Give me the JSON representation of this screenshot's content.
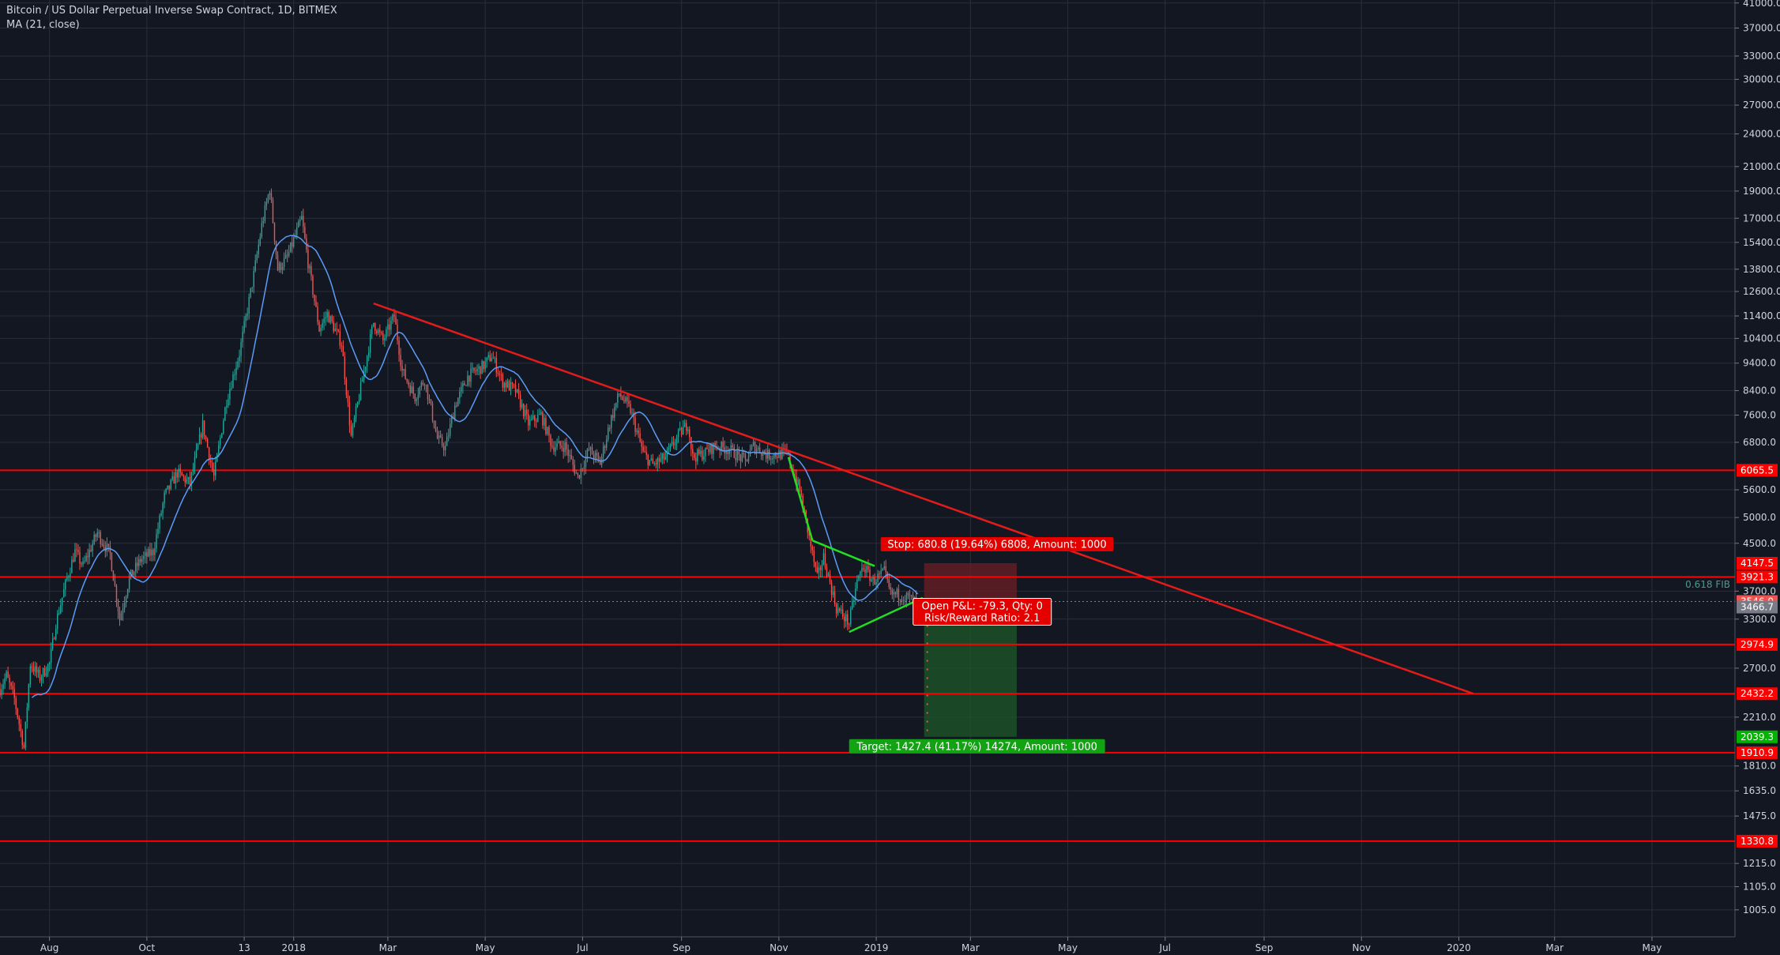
{
  "header": {
    "title": "Bitcoin / US Dollar Perpetual Inverse Swap Contract, 1D, BITMEX",
    "indicator": "MA (21, close)"
  },
  "colors": {
    "background": "#131722",
    "grid": "#2a2e39",
    "axis_text": "#d1d4dc",
    "candle_up": "#26a69a",
    "candle_down": "#ef5350",
    "ma_line": "#5b9cf6",
    "level_line": "#ff0000",
    "trend_line": "#e31b1b",
    "pattern_line": "#22dd22",
    "fib": "#4a9b8e",
    "target_zone": "#1e5a2a",
    "stop_zone": "#6e1f24"
  },
  "chart_data": {
    "type": "candlestick",
    "y_scale": "log",
    "ylim": [
      900,
      41500
    ],
    "y_ticks": [
      41000,
      37000,
      33000,
      30000,
      27000,
      24000,
      21000,
      19000,
      17000,
      15400,
      13800,
      12600,
      11400,
      10400,
      9400,
      8400,
      7600,
      6800,
      5600,
      5000,
      4500,
      3700,
      3300,
      2700,
      2210,
      1810,
      1635,
      1475,
      1215,
      1105,
      1005
    ],
    "y_tick_labels": [
      "41000.0",
      "37000.0",
      "33000.0",
      "30000.0",
      "27000.0",
      "24000.0",
      "21000.0",
      "19000.0",
      "17000.0",
      "15400.0",
      "13800.0",
      "12600.0",
      "11400.0",
      "10400.0",
      "9400.0",
      "8400.0",
      "7600.0",
      "6800.0",
      "5600.0",
      "5000.0",
      "4500.0",
      "3700.0",
      "3300.0",
      "2700.0",
      "2210.0",
      "1810.0",
      "1635.0",
      "1475.0",
      "1215.0",
      "1105.0",
      "1005.0"
    ],
    "x_range": [
      "2017-07-01",
      "2020-06-22"
    ],
    "x_ticks": [
      {
        "date": "2017-08-01",
        "label": "Aug"
      },
      {
        "date": "2017-10-01",
        "label": "Oct"
      },
      {
        "date": "2017-12-01",
        "label": "13"
      },
      {
        "date": "2018-01-01",
        "label": "2018"
      },
      {
        "date": "2018-03-01",
        "label": "Mar"
      },
      {
        "date": "2018-05-01",
        "label": "May"
      },
      {
        "date": "2018-07-01",
        "label": "Jul"
      },
      {
        "date": "2018-09-01",
        "label": "Sep"
      },
      {
        "date": "2018-11-01",
        "label": "Nov"
      },
      {
        "date": "2019-01-01",
        "label": "2019"
      },
      {
        "date": "2019-03-01",
        "label": "Mar"
      },
      {
        "date": "2019-05-01",
        "label": "May"
      },
      {
        "date": "2019-07-01",
        "label": "Jul"
      },
      {
        "date": "2019-09-01",
        "label": "Sep"
      },
      {
        "date": "2019-11-01",
        "label": "Nov"
      },
      {
        "date": "2020-01-01",
        "label": "2020"
      },
      {
        "date": "2020-03-01",
        "label": "Mar"
      },
      {
        "date": "2020-05-01",
        "label": "May"
      }
    ],
    "price_anchors": [
      [
        "2017-07-01",
        2480
      ],
      [
        "2017-07-05",
        2620
      ],
      [
        "2017-07-10",
        2380
      ],
      [
        "2017-07-16",
        1950
      ],
      [
        "2017-07-20",
        2750
      ],
      [
        "2017-07-26",
        2600
      ],
      [
        "2017-08-01",
        2750
      ],
      [
        "2017-08-05",
        3250
      ],
      [
        "2017-08-12",
        3900
      ],
      [
        "2017-08-17",
        4350
      ],
      [
        "2017-08-22",
        4100
      ],
      [
        "2017-08-31",
        4700
      ],
      [
        "2017-09-08",
        4300
      ],
      [
        "2017-09-14",
        3300
      ],
      [
        "2017-09-20",
        3900
      ],
      [
        "2017-09-27",
        4200
      ],
      [
        "2017-10-05",
        4350
      ],
      [
        "2017-10-12",
        5450
      ],
      [
        "2017-10-20",
        6000
      ],
      [
        "2017-10-28",
        5750
      ],
      [
        "2017-11-05",
        7300
      ],
      [
        "2017-11-12",
        5900
      ],
      [
        "2017-11-20",
        8100
      ],
      [
        "2017-11-28",
        9800
      ],
      [
        "2017-12-07",
        13500
      ],
      [
        "2017-12-12",
        16500
      ],
      [
        "2017-12-17",
        19200
      ],
      [
        "2017-12-22",
        13800
      ],
      [
        "2017-12-28",
        14500
      ],
      [
        "2018-01-06",
        17000
      ],
      [
        "2018-01-10",
        14200
      ],
      [
        "2018-01-17",
        10800
      ],
      [
        "2018-01-22",
        11500
      ],
      [
        "2018-01-31",
        10200
      ],
      [
        "2018-02-06",
        6950
      ],
      [
        "2018-02-12",
        8500
      ],
      [
        "2018-02-20",
        11100
      ],
      [
        "2018-02-26",
        10300
      ],
      [
        "2018-03-05",
        11400
      ],
      [
        "2018-03-10",
        9100
      ],
      [
        "2018-03-18",
        8200
      ],
      [
        "2018-03-24",
        8800
      ],
      [
        "2018-04-01",
        6900
      ],
      [
        "2018-04-06",
        6650
      ],
      [
        "2018-04-12",
        7900
      ],
      [
        "2018-04-20",
        8900
      ],
      [
        "2018-04-30",
        9300
      ],
      [
        "2018-05-05",
        9700
      ],
      [
        "2018-05-12",
        8700
      ],
      [
        "2018-05-20",
        8400
      ],
      [
        "2018-05-28",
        7350
      ],
      [
        "2018-06-05",
        7600
      ],
      [
        "2018-06-12",
        6700
      ],
      [
        "2018-06-20",
        6700
      ],
      [
        "2018-06-28",
        5900
      ],
      [
        "2018-07-05",
        6600
      ],
      [
        "2018-07-12",
        6250
      ],
      [
        "2018-07-18",
        7350
      ],
      [
        "2018-07-24",
        8300
      ],
      [
        "2018-07-31",
        7750
      ],
      [
        "2018-08-08",
        6500
      ],
      [
        "2018-08-14",
        6200
      ],
      [
        "2018-08-22",
        6400
      ],
      [
        "2018-08-30",
        7000
      ],
      [
        "2018-09-05",
        7350
      ],
      [
        "2018-09-08",
        6400
      ],
      [
        "2018-09-15",
        6500
      ],
      [
        "2018-09-22",
        6700
      ],
      [
        "2018-10-01",
        6600
      ],
      [
        "2018-10-11",
        6300
      ],
      [
        "2018-10-16",
        6700
      ],
      [
        "2018-10-25",
        6450
      ],
      [
        "2018-11-06",
        6500
      ],
      [
        "2018-11-14",
        5600
      ],
      [
        "2018-11-20",
        4600
      ],
      [
        "2018-11-25",
        3900
      ],
      [
        "2018-11-29",
        4250
      ],
      [
        "2018-12-07",
        3450
      ],
      [
        "2018-12-15",
        3250
      ],
      [
        "2018-12-20",
        3850
      ],
      [
        "2018-12-24",
        4100
      ],
      [
        "2018-12-30",
        3850
      ],
      [
        "2019-01-06",
        4000
      ],
      [
        "2019-01-10",
        3650
      ],
      [
        "2019-01-16",
        3650
      ],
      [
        "2019-01-23",
        3580
      ],
      [
        "2019-01-28",
        3480
      ]
    ],
    "moving_average": {
      "name": "MA (21, close)",
      "period": 21
    },
    "horizontal_levels": [
      6065.5,
      3921.3,
      2974.9,
      2432.2,
      1910.9,
      1330.8
    ],
    "price_labels": [
      {
        "value": 6065.5,
        "label": "6065.5",
        "color": "#ff0000"
      },
      {
        "value": 4147.5,
        "label": "4147.5",
        "color": "#ff0000"
      },
      {
        "value": 3921.3,
        "label": "3921.3",
        "color": "#ff0000"
      },
      {
        "value": 3546.0,
        "label": "3546.0",
        "color": "#ef5350"
      },
      {
        "value": 3466.7,
        "label": "3466.7",
        "color": "#787b86"
      },
      {
        "value": 2974.9,
        "label": "2974.9",
        "color": "#ff0000"
      },
      {
        "value": 2432.2,
        "label": "2432.2",
        "color": "#ff0000"
      },
      {
        "value": 2039.3,
        "label": "2039.3",
        "color": "#00b300"
      },
      {
        "value": 1910.9,
        "label": "1910.9",
        "color": "#ff0000"
      },
      {
        "value": 1330.8,
        "label": "1330.8",
        "color": "#ff0000"
      }
    ],
    "trend_line": {
      "from": [
        "2018-02-20",
        12000
      ],
      "to": [
        "2020-01-10",
        2432.2
      ]
    },
    "pattern_lines": [
      [
        [
          "2018-11-07",
          6400
        ],
        [
          "2018-11-22",
          4550
        ]
      ],
      [
        [
          "2018-11-22",
          4550
        ],
        [
          "2018-12-31",
          4100
        ]
      ],
      [
        [
          "2018-12-15",
          3130
        ],
        [
          "2019-01-30",
          3600
        ]
      ]
    ],
    "fib_label": {
      "text": "0.618 FIB",
      "value": 3800
    },
    "position": {
      "entry": 3546.0,
      "stop": 4147.5,
      "target": 2039.3,
      "start": "2019-01-31",
      "end": "2019-03-30",
      "stop_label": "Stop: 680.8 (19.64%) 6808, Amount: 1000",
      "target_label": "Target: 1427.4 (41.17%) 14274, Amount: 1000",
      "pnl_label": "Open P&L: -79.3, Qty: 0",
      "rr_label": "Risk/Reward Ratio: 2.1"
    }
  }
}
